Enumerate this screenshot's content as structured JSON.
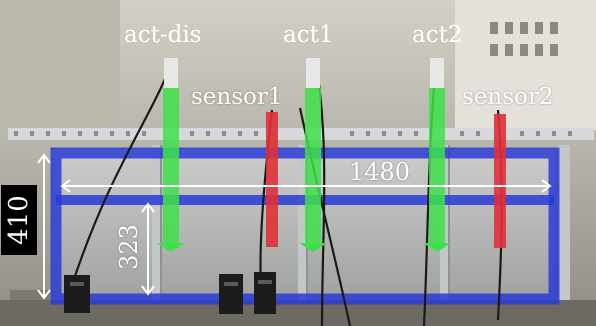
{
  "labels": {
    "act_dis": "act-dis",
    "act1": "act1",
    "act2": "act2",
    "sensor1": "sensor1",
    "sensor2": "sensor2",
    "width": "1480",
    "height": "410",
    "depth": "323"
  },
  "colors": {
    "tank_frame": "#2a3bd6",
    "actuator": "#3fe04a",
    "sensor": "#e0303a",
    "aluminum": "#b8bcc0"
  }
}
